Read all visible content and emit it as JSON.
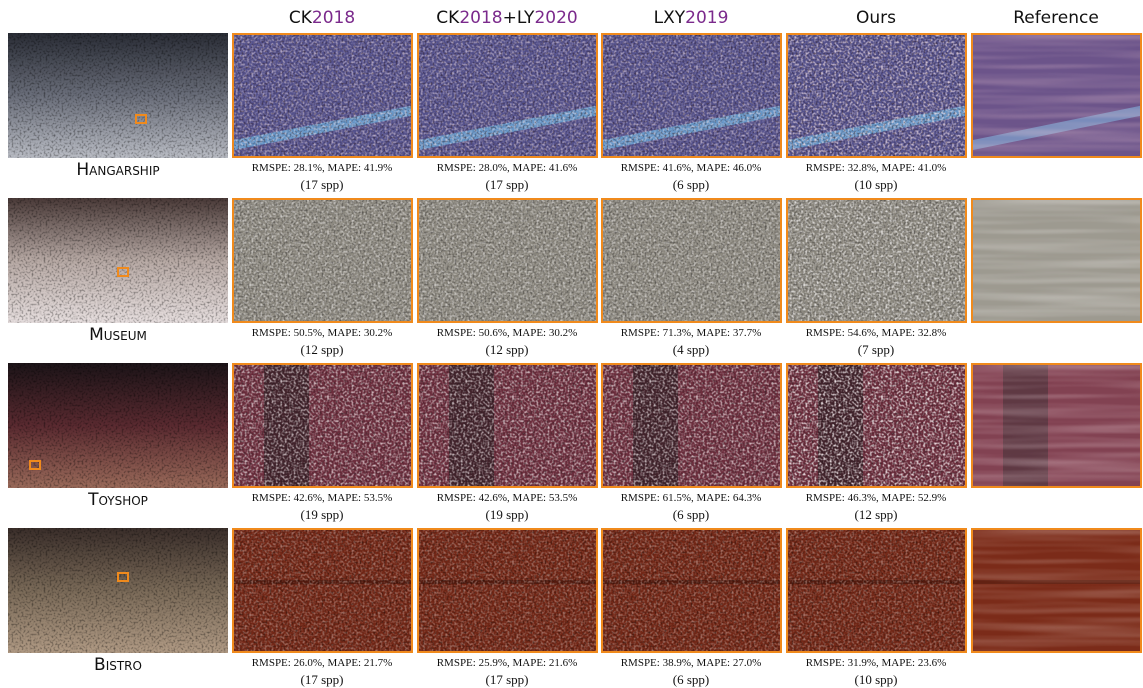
{
  "columns": [
    {
      "parts": [
        "CK",
        "2018"
      ]
    },
    {
      "parts": [
        "CK",
        "2018",
        "+LY",
        "2020"
      ]
    },
    {
      "parts": [
        "LXY",
        "2019"
      ]
    },
    {
      "parts": [
        "Ours"
      ]
    },
    {
      "parts": [
        "Reference"
      ]
    }
  ],
  "scenes": [
    {
      "name": "Hangarship",
      "metrics": [
        {
          "error": "RMSPE: 28.1%, MAPE: 41.9%",
          "spp": "(17 spp)"
        },
        {
          "error": "RMSPE: 28.0%, MAPE: 41.6%",
          "spp": "(17 spp)"
        },
        {
          "error": "RMSPE: 41.6%, MAPE: 46.0%",
          "spp": "(6 spp)"
        },
        {
          "error": "RMSPE: 32.8%, MAPE: 41.0%",
          "spp": "(10 spp)"
        }
      ]
    },
    {
      "name": "Museum",
      "metrics": [
        {
          "error": "RMSPE: 50.5%, MAPE: 30.2%",
          "spp": "(12 spp)"
        },
        {
          "error": "RMSPE: 50.6%, MAPE: 30.2%",
          "spp": "(12 spp)"
        },
        {
          "error": "RMSPE: 71.3%, MAPE: 37.7%",
          "spp": "(4 spp)"
        },
        {
          "error": "RMSPE: 54.6%, MAPE: 32.8%",
          "spp": "(7 spp)"
        }
      ]
    },
    {
      "name": "Toyshop",
      "metrics": [
        {
          "error": "RMSPE: 42.6%, MAPE: 53.5%",
          "spp": "(19 spp)"
        },
        {
          "error": "RMSPE: 42.6%, MAPE: 53.5%",
          "spp": "(19 spp)"
        },
        {
          "error": "RMSPE: 61.5%, MAPE: 64.3%",
          "spp": "(6 spp)"
        },
        {
          "error": "RMSPE: 46.3%, MAPE: 52.9%",
          "spp": "(12 spp)"
        }
      ]
    },
    {
      "name": "Bistro",
      "metrics": [
        {
          "error": "RMSPE: 26.0%, MAPE: 21.7%",
          "spp": "(17 spp)"
        },
        {
          "error": "RMSPE: 25.9%, MAPE: 21.6%",
          "spp": "(17 spp)"
        },
        {
          "error": "RMSPE: 38.9%, MAPE: 27.0%",
          "spp": "(6 spp)"
        },
        {
          "error": "RMSPE: 31.9%, MAPE: 23.6%",
          "spp": "(10 spp)"
        }
      ]
    }
  ]
}
